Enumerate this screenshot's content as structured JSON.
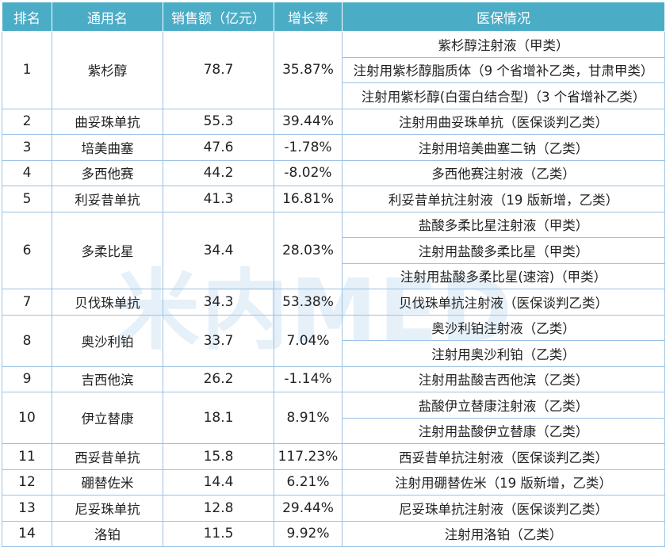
{
  "headers": [
    "排名",
    "通用名",
    "销售额（亿元）",
    "增长率",
    "医保情况"
  ],
  "rows": [
    {
      "rank": "1",
      "name": "紫杉醇",
      "sales": "78.7",
      "growth": "35.87%",
      "insurance": [
        "紫杉醇注射液（甲类）",
        "注射用紫杉醇脂质体（9 个省增补乙类，甘肃甲类）",
        "注射用紫杉醇(白蛋白结合型)（3 个省增补乙类）"
      ]
    },
    {
      "rank": "2",
      "name": "曲妥珠单抗",
      "sales": "55.3",
      "growth": "39.44%",
      "insurance": [
        "注射用曲妥珠单抗（医保谈判乙类）"
      ]
    },
    {
      "rank": "3",
      "name": "培美曲塞",
      "sales": "47.6",
      "growth": "-1.78%",
      "insurance": [
        "注射用培美曲塞二钠（乙类）"
      ]
    },
    {
      "rank": "4",
      "name": "多西他赛",
      "sales": "44.2",
      "growth": "-8.02%",
      "insurance": [
        "多西他赛注射液（乙类）"
      ]
    },
    {
      "rank": "5",
      "name": "利妥昔单抗",
      "sales": "41.3",
      "growth": "16.81%",
      "insurance": [
        "利妥昔单抗注射液（19 版新增，乙类）"
      ]
    },
    {
      "rank": "6",
      "name": "多柔比星",
      "sales": "34.4",
      "growth": "28.03%",
      "insurance": [
        "盐酸多柔比星注射液（甲类）",
        "注射用盐酸多柔比星（甲类）",
        "注射用盐酸多柔比星(速溶)（甲类）"
      ]
    },
    {
      "rank": "7",
      "name": "贝伐珠单抗",
      "sales": "34.3",
      "growth": "53.38%",
      "insurance": [
        "贝伐珠单抗注射液（医保谈判乙类）"
      ]
    },
    {
      "rank": "8",
      "name": "奥沙利铂",
      "sales": "33.7",
      "growth": "7.04%",
      "insurance": [
        "奥沙利铂注射液（乙类）",
        "注射用奥沙利铂（乙类）"
      ]
    },
    {
      "rank": "9",
      "name": "吉西他滨",
      "sales": "26.2",
      "growth": "-1.14%",
      "insurance": [
        "注射用盐酸吉西他滨（乙类）"
      ]
    },
    {
      "rank": "10",
      "name": "伊立替康",
      "sales": "18.1",
      "growth": "8.91%",
      "insurance": [
        "盐酸伊立替康注射液（乙类）",
        "注射用盐酸伊立替康（乙类）"
      ]
    },
    {
      "rank": "11",
      "name": "西妥昔单抗",
      "sales": "15.8",
      "growth": "117.23%",
      "insurance": [
        "西妥昔单抗注射液（医保谈判乙类）"
      ]
    },
    {
      "rank": "12",
      "name": "硼替佐米",
      "sales": "14.4",
      "growth": "6.21%",
      "insurance": [
        "注射用硼替佐米（19 版新增，乙类）"
      ]
    },
    {
      "rank": "13",
      "name": "尼妥珠单抗",
      "sales": "12.8",
      "growth": "29.44%",
      "insurance": [
        "尼妥珠单抗注射液（医保谈判乙类）"
      ]
    },
    {
      "rank": "14",
      "name": "洛铂",
      "sales": "11.5",
      "growth": "9.92%",
      "insurance": [
        "注射用洛铂（乙类）"
      ]
    }
  ],
  "watermark": "米内MED",
  "colors": {
    "header_bg": "#4bacc6",
    "header_text": "#ffffff",
    "border": "#9bc2e6"
  }
}
